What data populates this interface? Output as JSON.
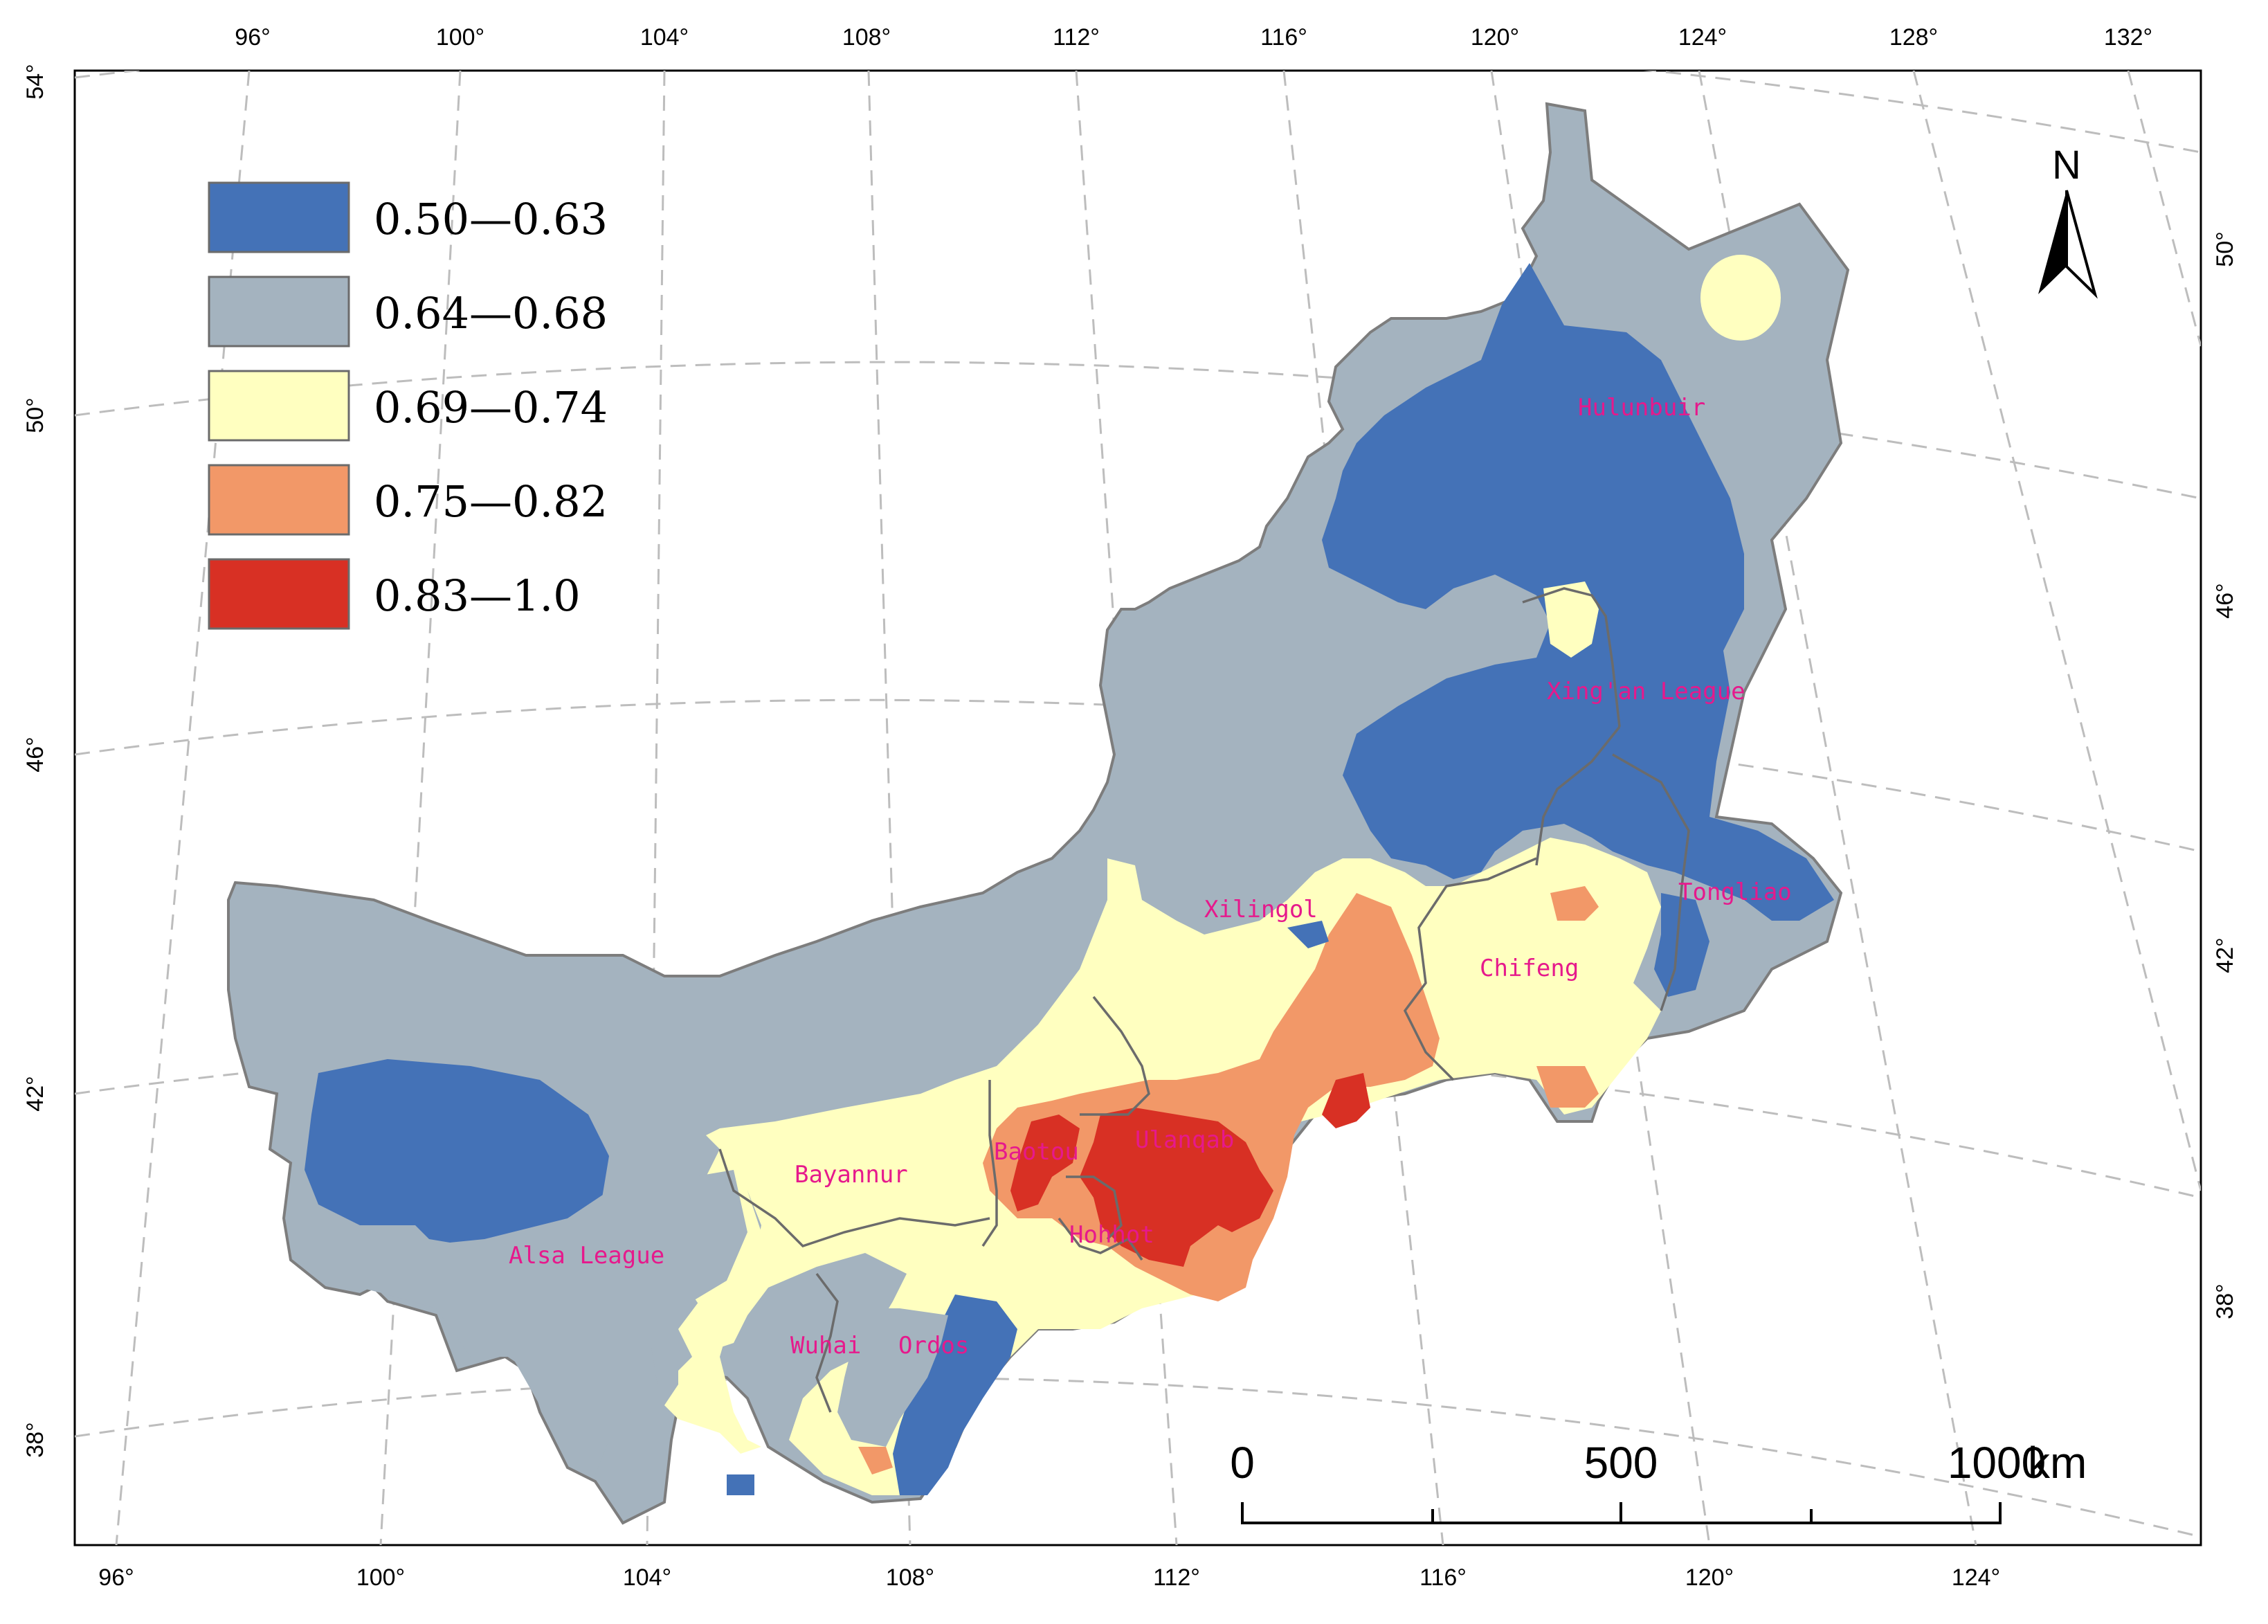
{
  "map": {
    "legend": [
      {
        "label": "0.50—0.63",
        "color": "#4472b7"
      },
      {
        "label": "0.64—0.68",
        "color": "#a4b3bf"
      },
      {
        "label": "0.69—0.74",
        "color": "#ffffc0"
      },
      {
        "label": "0.75—0.82",
        "color": "#f29868"
      },
      {
        "label": "0.83—1.0",
        "color": "#d83024"
      }
    ],
    "top_ticks": [
      "96°",
      "100°",
      "104°",
      "108°",
      "112°",
      "116°",
      "120°",
      "124°",
      "128°",
      "132°"
    ],
    "bottom_ticks": [
      "96°",
      "100°",
      "104°",
      "108°",
      "112°",
      "116°",
      "120°",
      "124°"
    ],
    "left_ticks": [
      "54°",
      "50°",
      "46°",
      "42°",
      "38°"
    ],
    "right_ticks": [
      "50°",
      "46°",
      "42°",
      "38°"
    ],
    "regions": [
      {
        "name": "Hulunbuir"
      },
      {
        "name": "Xing'an League"
      },
      {
        "name": "Tongliao"
      },
      {
        "name": "Xilingol"
      },
      {
        "name": "Chifeng"
      },
      {
        "name": "Bayannur"
      },
      {
        "name": "Baotou"
      },
      {
        "name": "Ulanqab"
      },
      {
        "name": "Hohhot"
      },
      {
        "name": "Alsa League"
      },
      {
        "name": "Wuhai"
      },
      {
        "name": "Ordos"
      }
    ],
    "north_label": "N",
    "scale": {
      "labels": [
        "0",
        "500",
        "1000"
      ],
      "unit": "km"
    },
    "border_color": "#6b6b6b",
    "label_color": "#e6198c"
  }
}
